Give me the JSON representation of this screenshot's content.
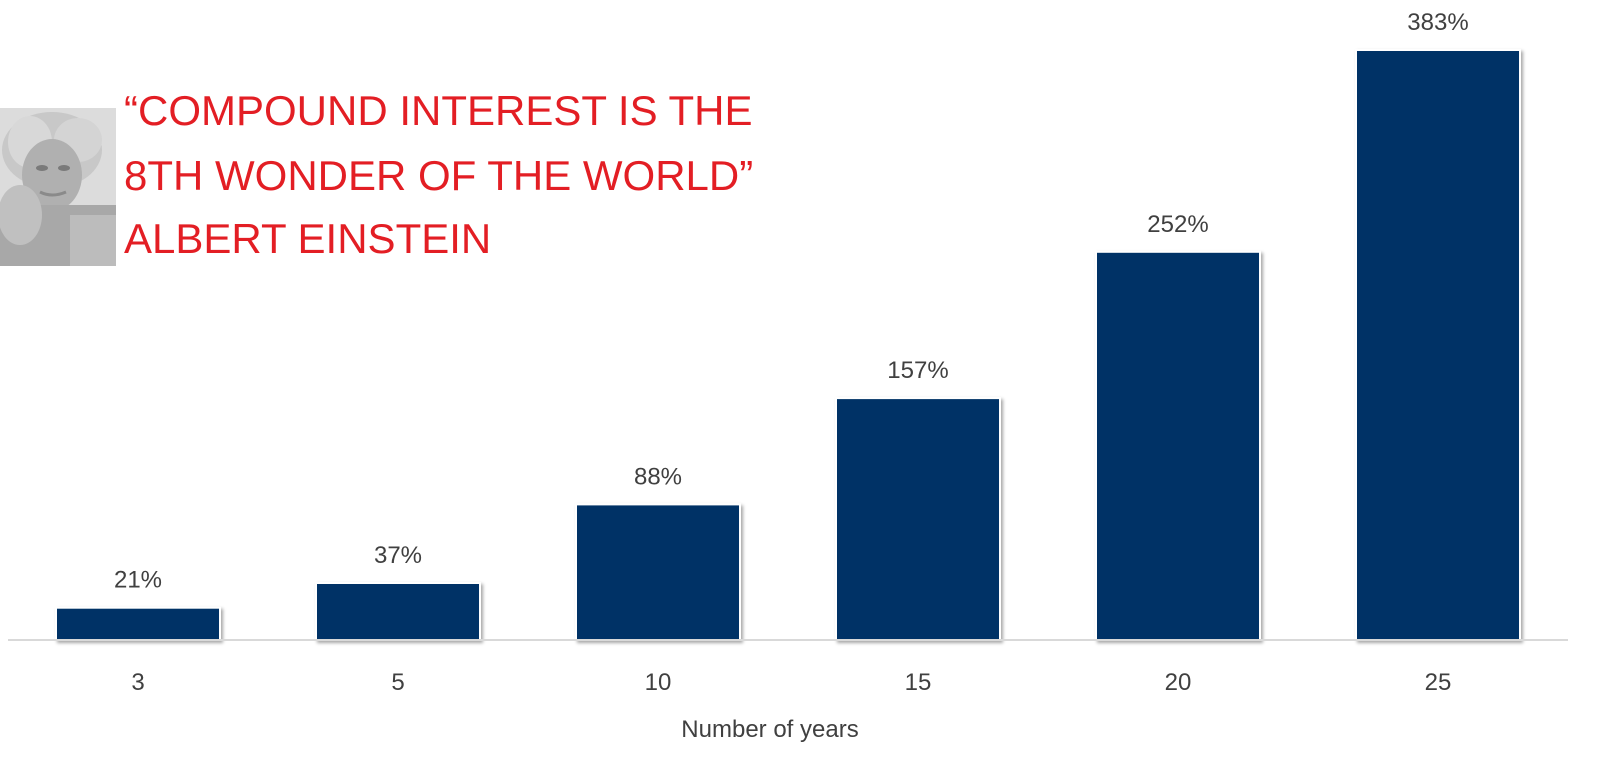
{
  "quote": {
    "lines": [
      "“COMPOUND INTEREST IS THE",
      "8TH WONDER OF THE WORLD”",
      "ALBERT EINSTEIN"
    ],
    "color": "#e31e24"
  },
  "portrait": {
    "icon": "einstein-portrait"
  },
  "chart_data": {
    "type": "bar",
    "categories": [
      "3",
      "5",
      "10",
      "15",
      "20",
      "25"
    ],
    "values": [
      21,
      37,
      88,
      157,
      252,
      383
    ],
    "value_labels": [
      "21%",
      "37%",
      "88%",
      "157%",
      "252%",
      "383%"
    ],
    "title": "",
    "xlabel": "Number of years",
    "ylabel": "",
    "ylim": [
      0,
      383
    ],
    "grid": false,
    "bar_color": "#003366",
    "label_color": "#404040",
    "axis_color": "#d9d9d9"
  }
}
